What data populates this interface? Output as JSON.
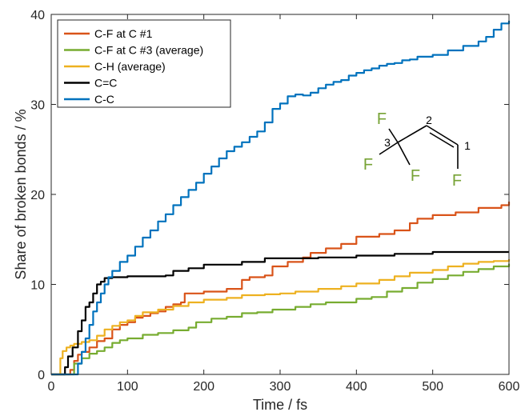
{
  "chart_data": {
    "type": "line",
    "xlabel": "Time / fs",
    "ylabel": "Share of broken bonds / %",
    "xlim": [
      0,
      600
    ],
    "ylim": [
      0,
      40
    ],
    "xticks": [
      0,
      100,
      200,
      300,
      400,
      500,
      600
    ],
    "yticks": [
      0,
      10,
      20,
      30,
      40
    ],
    "legend_position": "top-left",
    "grid": false,
    "series": [
      {
        "name": "C-F at C #1",
        "color": "#d95319",
        "points": [
          [
            0,
            0
          ],
          [
            20,
            0
          ],
          [
            25,
            0.5
          ],
          [
            30,
            1.5
          ],
          [
            35,
            2.2
          ],
          [
            40,
            2.5
          ],
          [
            50,
            3.0
          ],
          [
            60,
            3.7
          ],
          [
            70,
            4.0
          ],
          [
            80,
            5.0
          ],
          [
            90,
            5.5
          ],
          [
            100,
            5.8
          ],
          [
            110,
            6.3
          ],
          [
            120,
            6.5
          ],
          [
            130,
            6.8
          ],
          [
            140,
            7.0
          ],
          [
            150,
            7.5
          ],
          [
            160,
            7.8
          ],
          [
            170,
            8.0
          ],
          [
            175,
            9.0
          ],
          [
            200,
            9.2
          ],
          [
            230,
            9.5
          ],
          [
            250,
            10.5
          ],
          [
            260,
            10.8
          ],
          [
            280,
            11.0
          ],
          [
            290,
            12.0
          ],
          [
            310,
            12.5
          ],
          [
            330,
            13.0
          ],
          [
            340,
            13.5
          ],
          [
            360,
            14.0
          ],
          [
            380,
            14.5
          ],
          [
            400,
            15.3
          ],
          [
            430,
            15.6
          ],
          [
            450,
            16.0
          ],
          [
            470,
            16.8
          ],
          [
            480,
            17.3
          ],
          [
            500,
            17.7
          ],
          [
            530,
            18.0
          ],
          [
            560,
            18.5
          ],
          [
            590,
            18.8
          ],
          [
            600,
            19.2
          ]
        ]
      },
      {
        "name": "C-F at C #3 (average)",
        "color": "#77ac30",
        "points": [
          [
            0,
            0
          ],
          [
            25,
            0
          ],
          [
            30,
            1.2
          ],
          [
            40,
            1.8
          ],
          [
            50,
            2.3
          ],
          [
            60,
            2.6
          ],
          [
            70,
            3.0
          ],
          [
            80,
            3.5
          ],
          [
            90,
            3.8
          ],
          [
            100,
            4.0
          ],
          [
            120,
            4.4
          ],
          [
            140,
            4.6
          ],
          [
            160,
            4.9
          ],
          [
            180,
            5.2
          ],
          [
            190,
            5.8
          ],
          [
            210,
            6.2
          ],
          [
            230,
            6.4
          ],
          [
            250,
            6.8
          ],
          [
            270,
            6.9
          ],
          [
            290,
            7.2
          ],
          [
            320,
            7.5
          ],
          [
            340,
            7.8
          ],
          [
            360,
            8.0
          ],
          [
            400,
            8.4
          ],
          [
            420,
            8.6
          ],
          [
            440,
            9.2
          ],
          [
            460,
            9.6
          ],
          [
            480,
            10.2
          ],
          [
            500,
            10.6
          ],
          [
            520,
            11.0
          ],
          [
            540,
            11.4
          ],
          [
            560,
            11.7
          ],
          [
            580,
            12.0
          ],
          [
            600,
            12.3
          ]
        ]
      },
      {
        "name": "C-H (average)",
        "color": "#edb120",
        "points": [
          [
            0,
            0
          ],
          [
            10,
            0
          ],
          [
            12,
            1.8
          ],
          [
            15,
            2.6
          ],
          [
            20,
            3.0
          ],
          [
            25,
            3.2
          ],
          [
            30,
            3.4
          ],
          [
            40,
            3.6
          ],
          [
            50,
            3.8
          ],
          [
            60,
            4.3
          ],
          [
            70,
            5.0
          ],
          [
            80,
            5.4
          ],
          [
            90,
            5.8
          ],
          [
            100,
            6.0
          ],
          [
            110,
            6.5
          ],
          [
            120,
            6.9
          ],
          [
            140,
            7.2
          ],
          [
            160,
            7.6
          ],
          [
            180,
            8.0
          ],
          [
            200,
            8.3
          ],
          [
            230,
            8.5
          ],
          [
            250,
            8.8
          ],
          [
            280,
            8.9
          ],
          [
            300,
            9.0
          ],
          [
            320,
            9.2
          ],
          [
            350,
            9.5
          ],
          [
            380,
            9.8
          ],
          [
            400,
            10.1
          ],
          [
            430,
            10.5
          ],
          [
            450,
            10.9
          ],
          [
            470,
            11.3
          ],
          [
            500,
            11.6
          ],
          [
            520,
            12.0
          ],
          [
            540,
            12.3
          ],
          [
            560,
            12.5
          ],
          [
            580,
            12.6
          ],
          [
            600,
            12.8
          ]
        ]
      },
      {
        "name": "C=C",
        "color": "#000000",
        "points": [
          [
            0,
            0
          ],
          [
            15,
            0
          ],
          [
            18,
            0.8
          ],
          [
            22,
            2.0
          ],
          [
            28,
            3.0
          ],
          [
            35,
            4.8
          ],
          [
            40,
            6.0
          ],
          [
            45,
            7.5
          ],
          [
            50,
            8.0
          ],
          [
            55,
            9.0
          ],
          [
            60,
            10.0
          ],
          [
            65,
            10.3
          ],
          [
            70,
            10.7
          ],
          [
            80,
            10.8
          ],
          [
            100,
            10.9
          ],
          [
            150,
            11.0
          ],
          [
            160,
            11.5
          ],
          [
            180,
            11.8
          ],
          [
            200,
            12.2
          ],
          [
            250,
            12.5
          ],
          [
            280,
            12.9
          ],
          [
            350,
            13.0
          ],
          [
            400,
            13.2
          ],
          [
            450,
            13.4
          ],
          [
            500,
            13.6
          ],
          [
            600,
            13.6
          ]
        ]
      },
      {
        "name": "C-C",
        "color": "#0072bd",
        "points": [
          [
            0,
            0
          ],
          [
            30,
            0
          ],
          [
            35,
            1.2
          ],
          [
            40,
            2.5
          ],
          [
            45,
            4.0
          ],
          [
            50,
            5.5
          ],
          [
            55,
            7.0
          ],
          [
            60,
            8.0
          ],
          [
            65,
            9.0
          ],
          [
            70,
            10.0
          ],
          [
            75,
            10.8
          ],
          [
            80,
            11.5
          ],
          [
            90,
            12.5
          ],
          [
            100,
            13.2
          ],
          [
            110,
            14.2
          ],
          [
            120,
            15.2
          ],
          [
            130,
            16.0
          ],
          [
            140,
            17.0
          ],
          [
            150,
            17.8
          ],
          [
            160,
            18.8
          ],
          [
            170,
            19.7
          ],
          [
            180,
            20.5
          ],
          [
            190,
            21.3
          ],
          [
            200,
            22.3
          ],
          [
            210,
            23.1
          ],
          [
            220,
            24.0
          ],
          [
            230,
            24.8
          ],
          [
            240,
            25.3
          ],
          [
            250,
            25.8
          ],
          [
            260,
            26.4
          ],
          [
            270,
            27.0
          ],
          [
            280,
            28.0
          ],
          [
            290,
            29.5
          ],
          [
            300,
            30.1
          ],
          [
            310,
            30.9
          ],
          [
            320,
            31.1
          ],
          [
            330,
            31.0
          ],
          [
            340,
            31.3
          ],
          [
            350,
            31.8
          ],
          [
            360,
            32.2
          ],
          [
            370,
            32.5
          ],
          [
            380,
            32.7
          ],
          [
            390,
            33.2
          ],
          [
            400,
            33.5
          ],
          [
            410,
            33.8
          ],
          [
            420,
            34.0
          ],
          [
            430,
            34.3
          ],
          [
            440,
            34.5
          ],
          [
            450,
            34.6
          ],
          [
            460,
            34.9
          ],
          [
            470,
            35.0
          ],
          [
            480,
            35.3
          ],
          [
            500,
            35.5
          ],
          [
            520,
            36.0
          ],
          [
            540,
            36.5
          ],
          [
            560,
            37.0
          ],
          [
            570,
            37.5
          ],
          [
            580,
            38.3
          ],
          [
            590,
            39.0
          ],
          [
            600,
            39.3
          ]
        ]
      }
    ]
  },
  "molecule": {
    "atoms": [
      "F",
      "F",
      "F",
      "F"
    ],
    "numbers": [
      "1",
      "2",
      "3"
    ],
    "atom_color": "#77a336",
    "bond_color": "#000000"
  }
}
